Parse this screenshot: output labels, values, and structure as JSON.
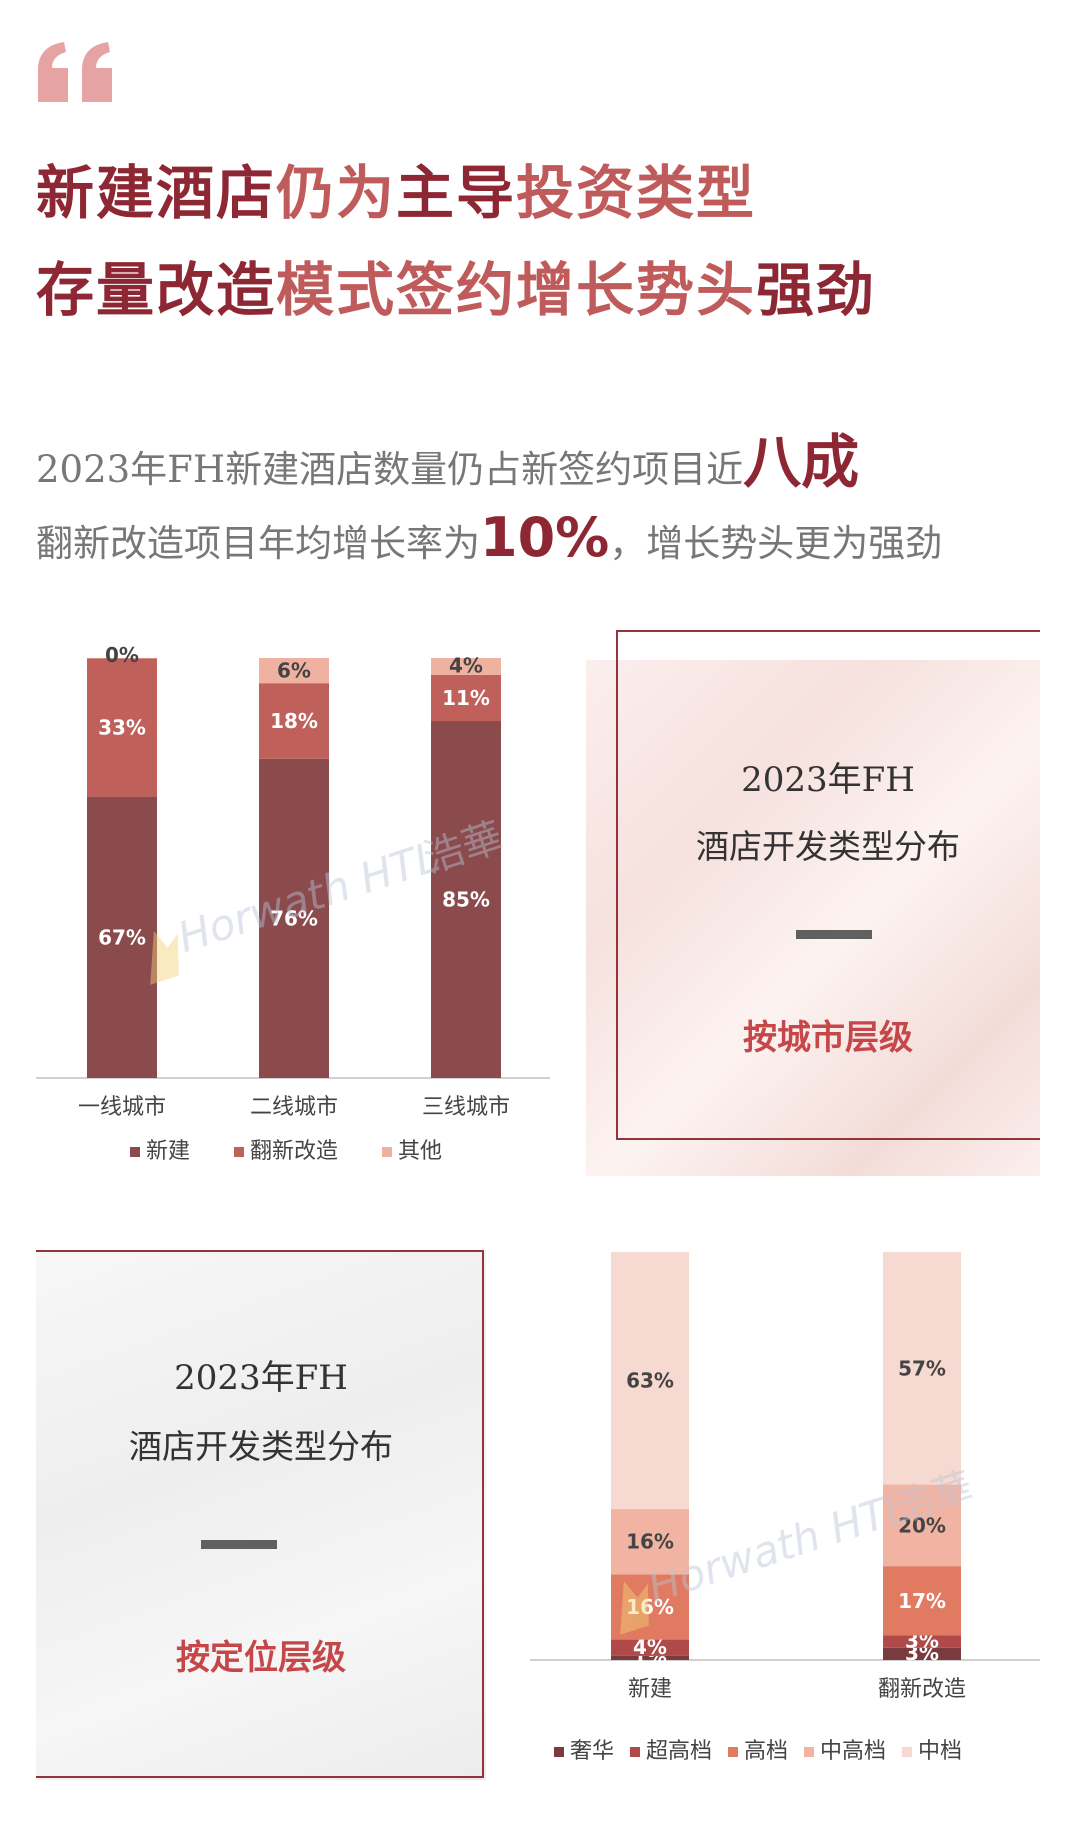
{
  "headline": {
    "line1": [
      {
        "text": "新建酒店",
        "style": "dark"
      },
      {
        "text": "仍为",
        "style": "light"
      },
      {
        "text": "主导",
        "style": "dark"
      },
      {
        "text": "投资类型",
        "style": "light"
      }
    ],
    "line2": [
      {
        "text": "存量改造",
        "style": "dark"
      },
      {
        "text": "模式签约增长势头",
        "style": "light"
      },
      {
        "text": "强劲",
        "style": "dark"
      }
    ]
  },
  "summary": {
    "line1_text": "2023年FH新建酒店数量仍占新签约项目近",
    "line1_emphasis": "八成",
    "line2_text": "翻新改造项目年均增长率为",
    "line2_emphasis": "10%",
    "line2_tail": "，增长势头更为强劲"
  },
  "panel_city": {
    "year": "2023年FH",
    "title": "酒店开发类型分布",
    "subtitle": "按城市层级"
  },
  "panel_position": {
    "year": "2023年FH",
    "title": "酒店开发类型分布",
    "subtitle": "按定位层级"
  },
  "watermark": {
    "brand": "Horwath HTL",
    "cn": "浩華"
  },
  "colors": {
    "headline_dark": "#8e2734",
    "headline_light": "#bf5b5b",
    "new_build": "#8b4a4c",
    "renovation": "#c0605b",
    "other": "#f0b2a0",
    "luxury": "#7a3a3e",
    "upper_upscale": "#b04a4a",
    "upscale": "#e07a60",
    "upper_midscale": "#f2b4a2",
    "midscale": "#f6d9d0"
  },
  "chart_data": [
    {
      "type": "bar",
      "stacked": true,
      "categories": [
        "一线城市",
        "二线城市",
        "三线城市"
      ],
      "series": [
        {
          "name": "新建",
          "values": [
            67,
            76,
            85
          ],
          "labels": [
            "67%",
            "76%",
            "85%"
          ]
        },
        {
          "name": "翻新改造",
          "values": [
            33,
            18,
            11
          ],
          "labels": [
            "33%",
            "18%",
            "11%"
          ]
        },
        {
          "name": "其他",
          "values": [
            0,
            6,
            4
          ],
          "labels": [
            "0%",
            "6%",
            "4%"
          ]
        }
      ],
      "ylim": [
        0,
        100
      ],
      "grid": false,
      "legend": "bottom"
    },
    {
      "type": "bar",
      "stacked": true,
      "categories": [
        "新建",
        "翻新改造"
      ],
      "series": [
        {
          "name": "奢华",
          "values": [
            1,
            3
          ],
          "labels": [
            "1%",
            "3%"
          ]
        },
        {
          "name": "超高档",
          "values": [
            4,
            3
          ],
          "labels": [
            "4%",
            "3%"
          ]
        },
        {
          "name": "高档",
          "values": [
            16,
            17
          ],
          "labels": [
            "16%",
            "17%"
          ]
        },
        {
          "name": "中高档",
          "values": [
            16,
            20
          ],
          "labels": [
            "16%",
            "20%"
          ]
        },
        {
          "name": "中档",
          "values": [
            63,
            57
          ],
          "labels": [
            "63%",
            "57%"
          ]
        }
      ],
      "ylim": [
        0,
        100
      ],
      "grid": false,
      "legend": "bottom"
    }
  ]
}
